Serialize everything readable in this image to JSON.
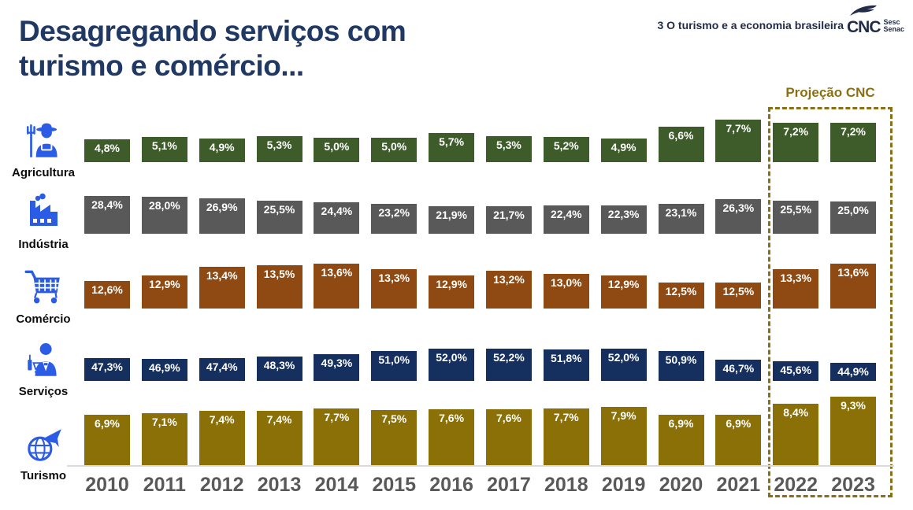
{
  "header": {
    "title": "Desagregando serviços com turismo e comércio...",
    "context_label": "3 O turismo e a economia brasileira",
    "logo": {
      "brand": "CNC",
      "sub_brands": [
        "Sesc",
        "Senac"
      ],
      "icon": "quill-feather-icon"
    }
  },
  "projection": {
    "label": "Projeção CNC",
    "covers_years": [
      "2022",
      "2023"
    ],
    "color": "#8A7014"
  },
  "colors": {
    "title_navy": "#1F3864",
    "header_navy": "#232C46",
    "icon_blue": "#2B5CE6",
    "year_gray": "#595959",
    "axis_gray": "#D9D9D9",
    "projection_gold": "#8A7014"
  },
  "chart_data": {
    "type": "bar",
    "categories": [
      "2010",
      "2011",
      "2012",
      "2013",
      "2014",
      "2015",
      "2016",
      "2017",
      "2018",
      "2019",
      "2020",
      "2021",
      "2022",
      "2023"
    ],
    "series": [
      {
        "name": "Agricultura",
        "icon": "farmer-icon",
        "color": "#3E5C2A",
        "values": [
          4.8,
          5.1,
          4.9,
          5.3,
          5.0,
          5.0,
          5.7,
          5.3,
          5.2,
          4.9,
          6.6,
          7.7,
          7.2,
          7.2
        ]
      },
      {
        "name": "Indústria",
        "icon": "factory-icon",
        "color": "#595959",
        "values": [
          28.4,
          28.0,
          26.9,
          25.5,
          24.4,
          23.2,
          21.9,
          21.7,
          22.4,
          22.3,
          23.1,
          26.3,
          25.5,
          25.0
        ]
      },
      {
        "name": "Comércio",
        "icon": "shopping-cart-icon",
        "color": "#8E4A12",
        "values": [
          12.6,
          12.9,
          13.4,
          13.5,
          13.6,
          13.3,
          12.9,
          13.2,
          13.0,
          12.9,
          12.5,
          12.5,
          13.3,
          13.6
        ]
      },
      {
        "name": "Serviços",
        "icon": "waiter-icon",
        "color": "#152F5F",
        "values": [
          47.3,
          46.9,
          47.4,
          48.3,
          49.3,
          51.0,
          52.0,
          52.2,
          51.8,
          52.0,
          50.9,
          46.7,
          45.6,
          44.9
        ]
      },
      {
        "name": "Turismo",
        "icon": "plane-globe-icon",
        "color": "#8A7006",
        "values": [
          6.9,
          7.1,
          7.4,
          7.4,
          7.7,
          7.5,
          7.6,
          7.6,
          7.7,
          7.9,
          6.9,
          6.9,
          8.4,
          9.3
        ]
      }
    ],
    "value_format": "comma-decimal-percent",
    "legend_position": "left",
    "grid": false,
    "xlabel": "",
    "ylabel": ""
  }
}
